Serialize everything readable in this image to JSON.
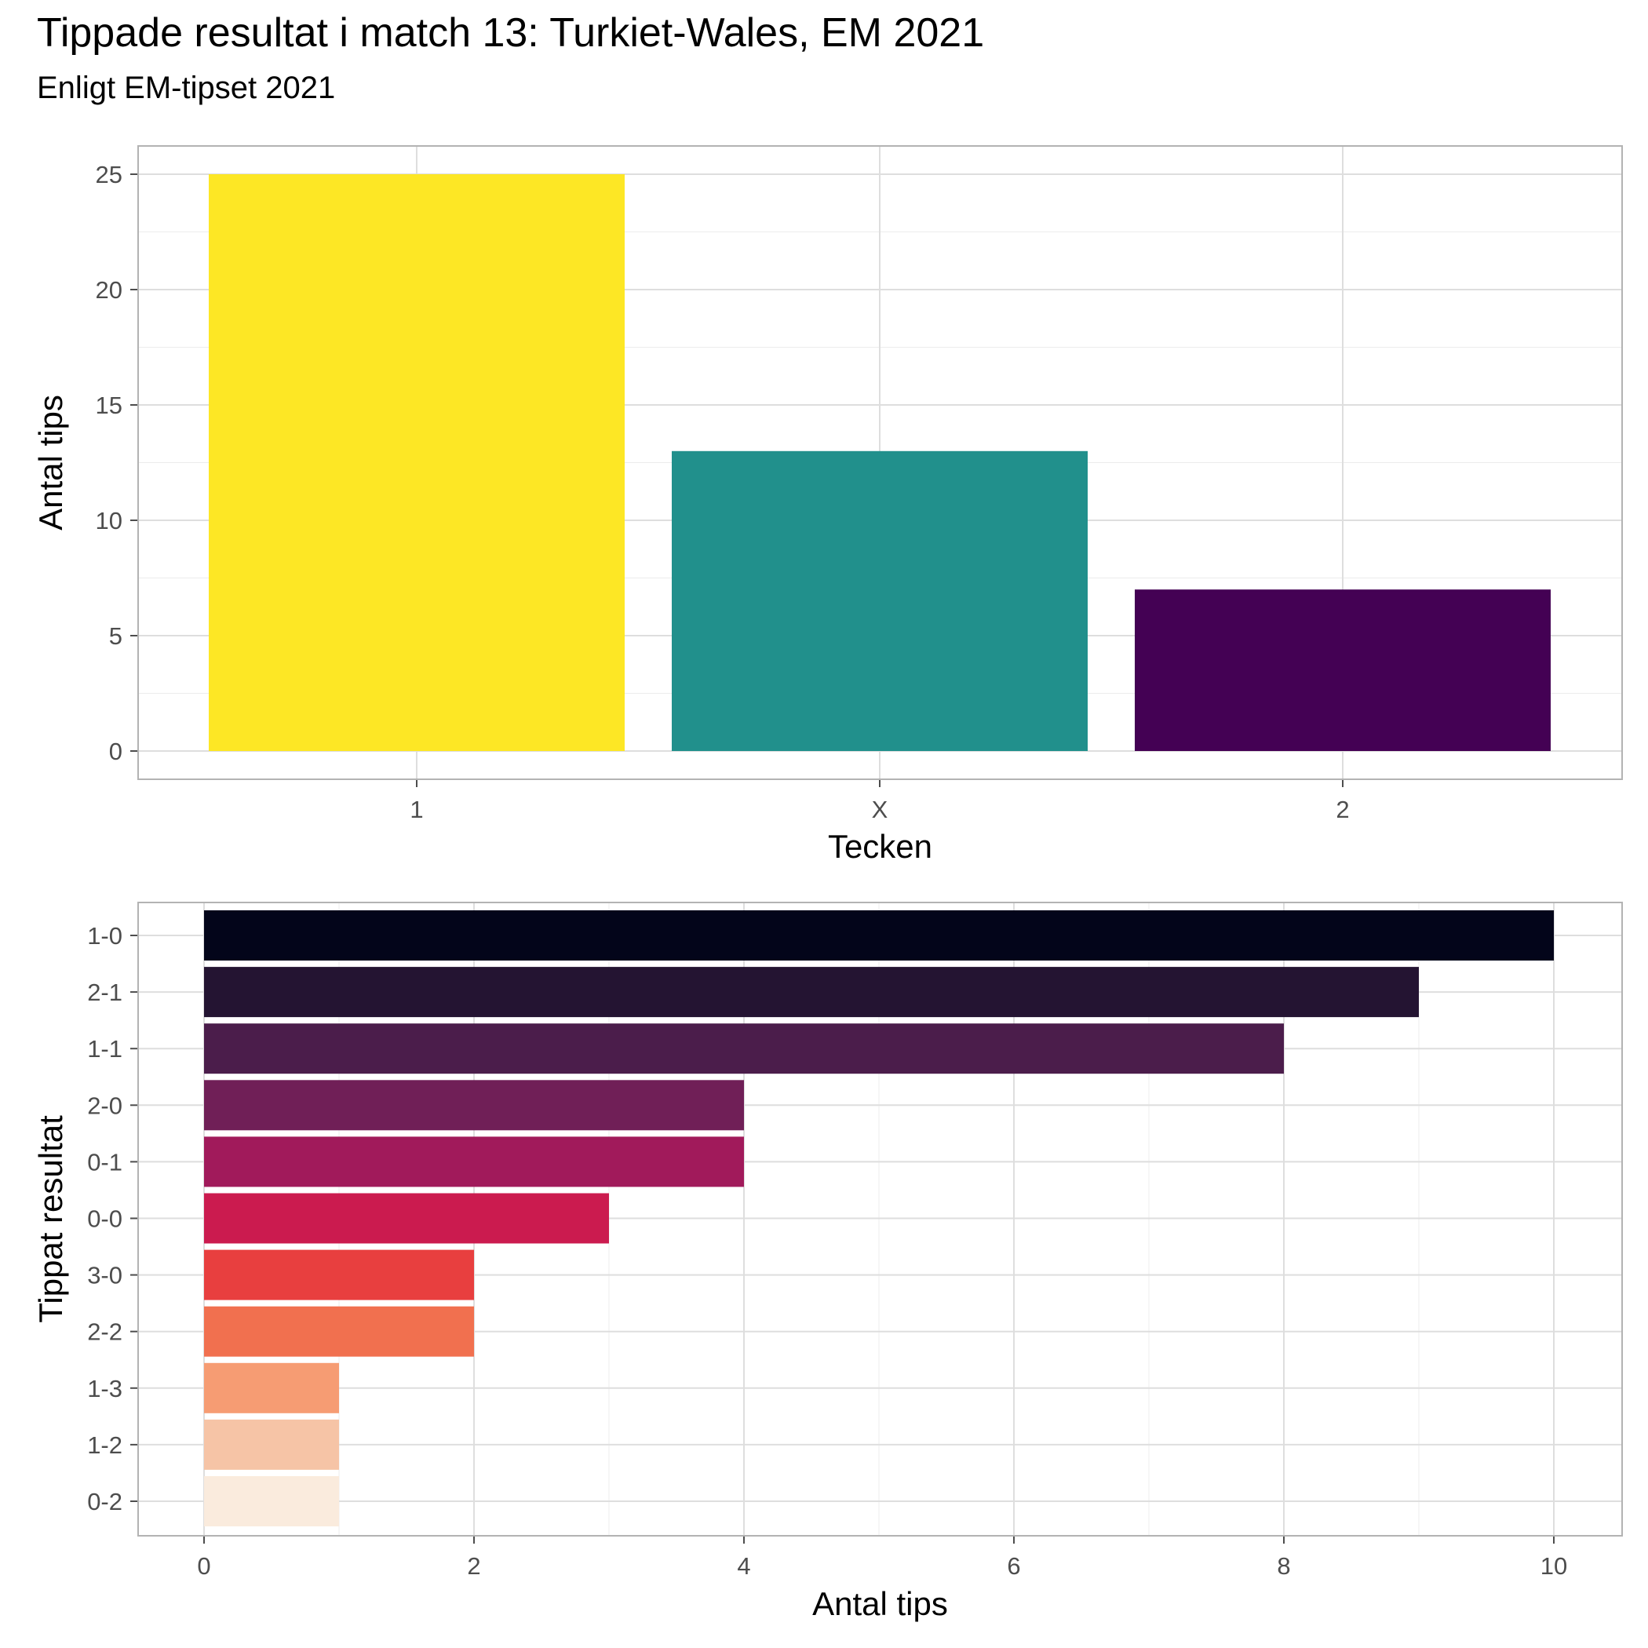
{
  "header": {
    "title": "Tippade resultat i match 13: Turkiet-Wales, EM 2021",
    "subtitle": "Enligt EM-tipset 2021"
  },
  "chart_data": [
    {
      "type": "bar",
      "orientation": "vertical",
      "categories": [
        "1",
        "X",
        "2"
      ],
      "values": [
        25,
        13,
        7
      ],
      "colors": [
        "#FDE725",
        "#21908C",
        "#440154"
      ],
      "xlabel": "Tecken",
      "ylabel": "Antal tips",
      "ylim": [
        0,
        26.2
      ],
      "yticks": [
        0,
        5,
        10,
        15,
        20,
        25
      ],
      "grid": true,
      "legend": "none"
    },
    {
      "type": "bar",
      "orientation": "horizontal",
      "categories": [
        "1-0",
        "2-1",
        "1-1",
        "2-0",
        "0-1",
        "0-0",
        "3-0",
        "2-2",
        "1-3",
        "1-2",
        "0-2"
      ],
      "values": [
        10,
        9,
        8,
        4,
        4,
        3,
        2,
        2,
        1,
        1,
        1
      ],
      "colors": [
        "#03051A",
        "#241432",
        "#4B1D4B",
        "#701F57",
        "#A11A5B",
        "#CB1B4F",
        "#E83F3F",
        "#F1704F",
        "#F69C73",
        "#F6C4A6",
        "#FAEBDD"
      ],
      "xlabel": "Antal tips",
      "ylabel": "Tippat resultat",
      "xlim": [
        -0.5,
        10.5
      ],
      "xticks": [
        0,
        2,
        4,
        6,
        8,
        10
      ],
      "grid": true,
      "legend": "none"
    }
  ]
}
